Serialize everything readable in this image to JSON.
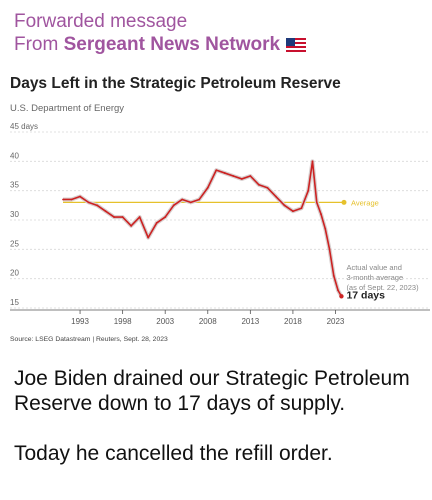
{
  "forwarded": {
    "label": "Forwarded message",
    "from_prefix": "From",
    "source_name": "Sergeant News Network",
    "flag_icon": "us-flag-icon"
  },
  "chart_data": {
    "type": "line",
    "title": "Days Left in the Strategic Petroleum Reserve",
    "subtitle": "U.S. Department of Energy",
    "ylim": [
      15,
      45
    ],
    "yticks": [
      "45 days",
      "40",
      "35",
      "30",
      "25",
      "20",
      "15"
    ],
    "xlim": [
      1989,
      2024
    ],
    "xticks": [
      "1993",
      "1998",
      "2003",
      "2008",
      "2013",
      "2018",
      "2023"
    ],
    "grid": true,
    "series": [
      {
        "color": "#cc2222",
        "x": [
          1991,
          1992,
          1993,
          1994,
          1995,
          1996,
          1997,
          1998,
          1999,
          2000,
          2001,
          2002,
          2003,
          2004,
          2005,
          2006,
          2007,
          2008,
          2009,
          2010,
          2011,
          2012,
          2013,
          2014,
          2015,
          2016,
          2017,
          2018,
          2019,
          2019.8,
          2020.3,
          2020.8,
          2021.3,
          2021.8,
          2022.3,
          2022.8,
          2023.3,
          2023.7
        ],
        "y": [
          33.5,
          33.5,
          34.0,
          33.0,
          32.5,
          31.5,
          30.5,
          30.5,
          29.0,
          30.5,
          27.0,
          29.5,
          30.5,
          32.5,
          33.5,
          33.0,
          33.5,
          35.5,
          38.5,
          38.0,
          37.5,
          37.0,
          37.5,
          36.0,
          35.5,
          34.0,
          32.5,
          31.5,
          32.0,
          35.0,
          40.0,
          33.0,
          31.0,
          28.5,
          25.0,
          20.5,
          18.0,
          17.0
        ]
      }
    ],
    "reference_line": {
      "label": "Average",
      "value": 33.0,
      "color": "#e6c12b"
    },
    "annotation": {
      "lines": [
        "Actual value and",
        "3-month average",
        "(as of Sept. 22, 2023)"
      ],
      "value_label": "17 days"
    },
    "source": "Source: LSEG Datastream | Reuters, Sept. 28, 2023"
  },
  "message": {
    "paragraph1": "Joe Biden drained our Strategic Petroleum Reserve down to 17 days of supply.",
    "paragraph2": "Today he cancelled the refill order."
  }
}
